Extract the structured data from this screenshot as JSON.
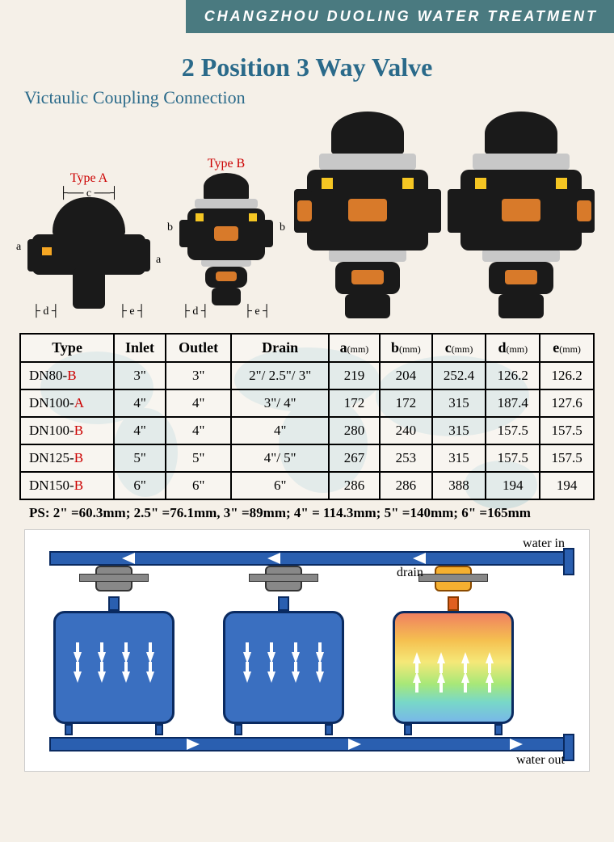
{
  "header": "CHANGZHOU DUOLING WATER TREATMENT",
  "title": "2 Position 3 Way Valve",
  "subtitle": "Victaulic Coupling Connection",
  "types": {
    "a": "Type A",
    "b": "Type B"
  },
  "dims": {
    "a": "a",
    "b": "b",
    "c": "c",
    "d": "d",
    "e": "e"
  },
  "table": {
    "headers": [
      "Type",
      "Inlet",
      "Outlet",
      "Drain",
      "a",
      "b",
      "c",
      "d",
      "e"
    ],
    "unit": "(mm)",
    "rows": [
      {
        "type_prefix": "DN80-",
        "type_suffix": "B",
        "inlet": "3\"",
        "outlet": "3\"",
        "drain": "2\"/ 2.5\"/ 3\"",
        "a": "219",
        "b": "204",
        "c": "252.4",
        "d": "126.2",
        "e": "126.2"
      },
      {
        "type_prefix": "DN100-",
        "type_suffix": "A",
        "inlet": "4\"",
        "outlet": "4\"",
        "drain": "3\"/ 4\"",
        "a": "172",
        "b": "172",
        "c": "315",
        "d": "187.4",
        "e": "127.6"
      },
      {
        "type_prefix": "DN100-",
        "type_suffix": "B",
        "inlet": "4\"",
        "outlet": "4\"",
        "drain": "4\"",
        "a": "280",
        "b": "240",
        "c": "315",
        "d": "157.5",
        "e": "157.5"
      },
      {
        "type_prefix": "DN125-",
        "type_suffix": "B",
        "inlet": "5\"",
        "outlet": "5\"",
        "drain": "4\"/ 5\"",
        "a": "267",
        "b": "253",
        "c": "315",
        "d": "157.5",
        "e": "157.5"
      },
      {
        "type_prefix": "DN150-",
        "type_suffix": "B",
        "inlet": "6\"",
        "outlet": "6\"",
        "drain": "6\"",
        "a": "286",
        "b": "286",
        "c": "388",
        "d": "194",
        "e": "194"
      }
    ]
  },
  "ps_note": "PS: 2\" =60.3mm; 2.5\" =76.1mm, 3\" =89mm; 4\" = 114.3mm; 5\" =140mm; 6\" =165mm",
  "diagram": {
    "water_in": "water in",
    "water_out": "water out",
    "drain": "drain"
  },
  "colors": {
    "header_bg": "#4a7a80",
    "title": "#2a6a8a",
    "type_red": "#c00000",
    "valve_black": "#1a1a1a",
    "valve_orange": "#d87a2a",
    "valve_yellow": "#f5c623",
    "pipe_blue": "#2a5fb0",
    "pipe_border": "#0a2a60",
    "tank_blue": "#3a6fc0",
    "rainbow": [
      "#f08060",
      "#f5c050",
      "#f5e878",
      "#a8e878",
      "#78d8c8",
      "#78b8e8"
    ],
    "drain_orange": "#f5b030"
  }
}
